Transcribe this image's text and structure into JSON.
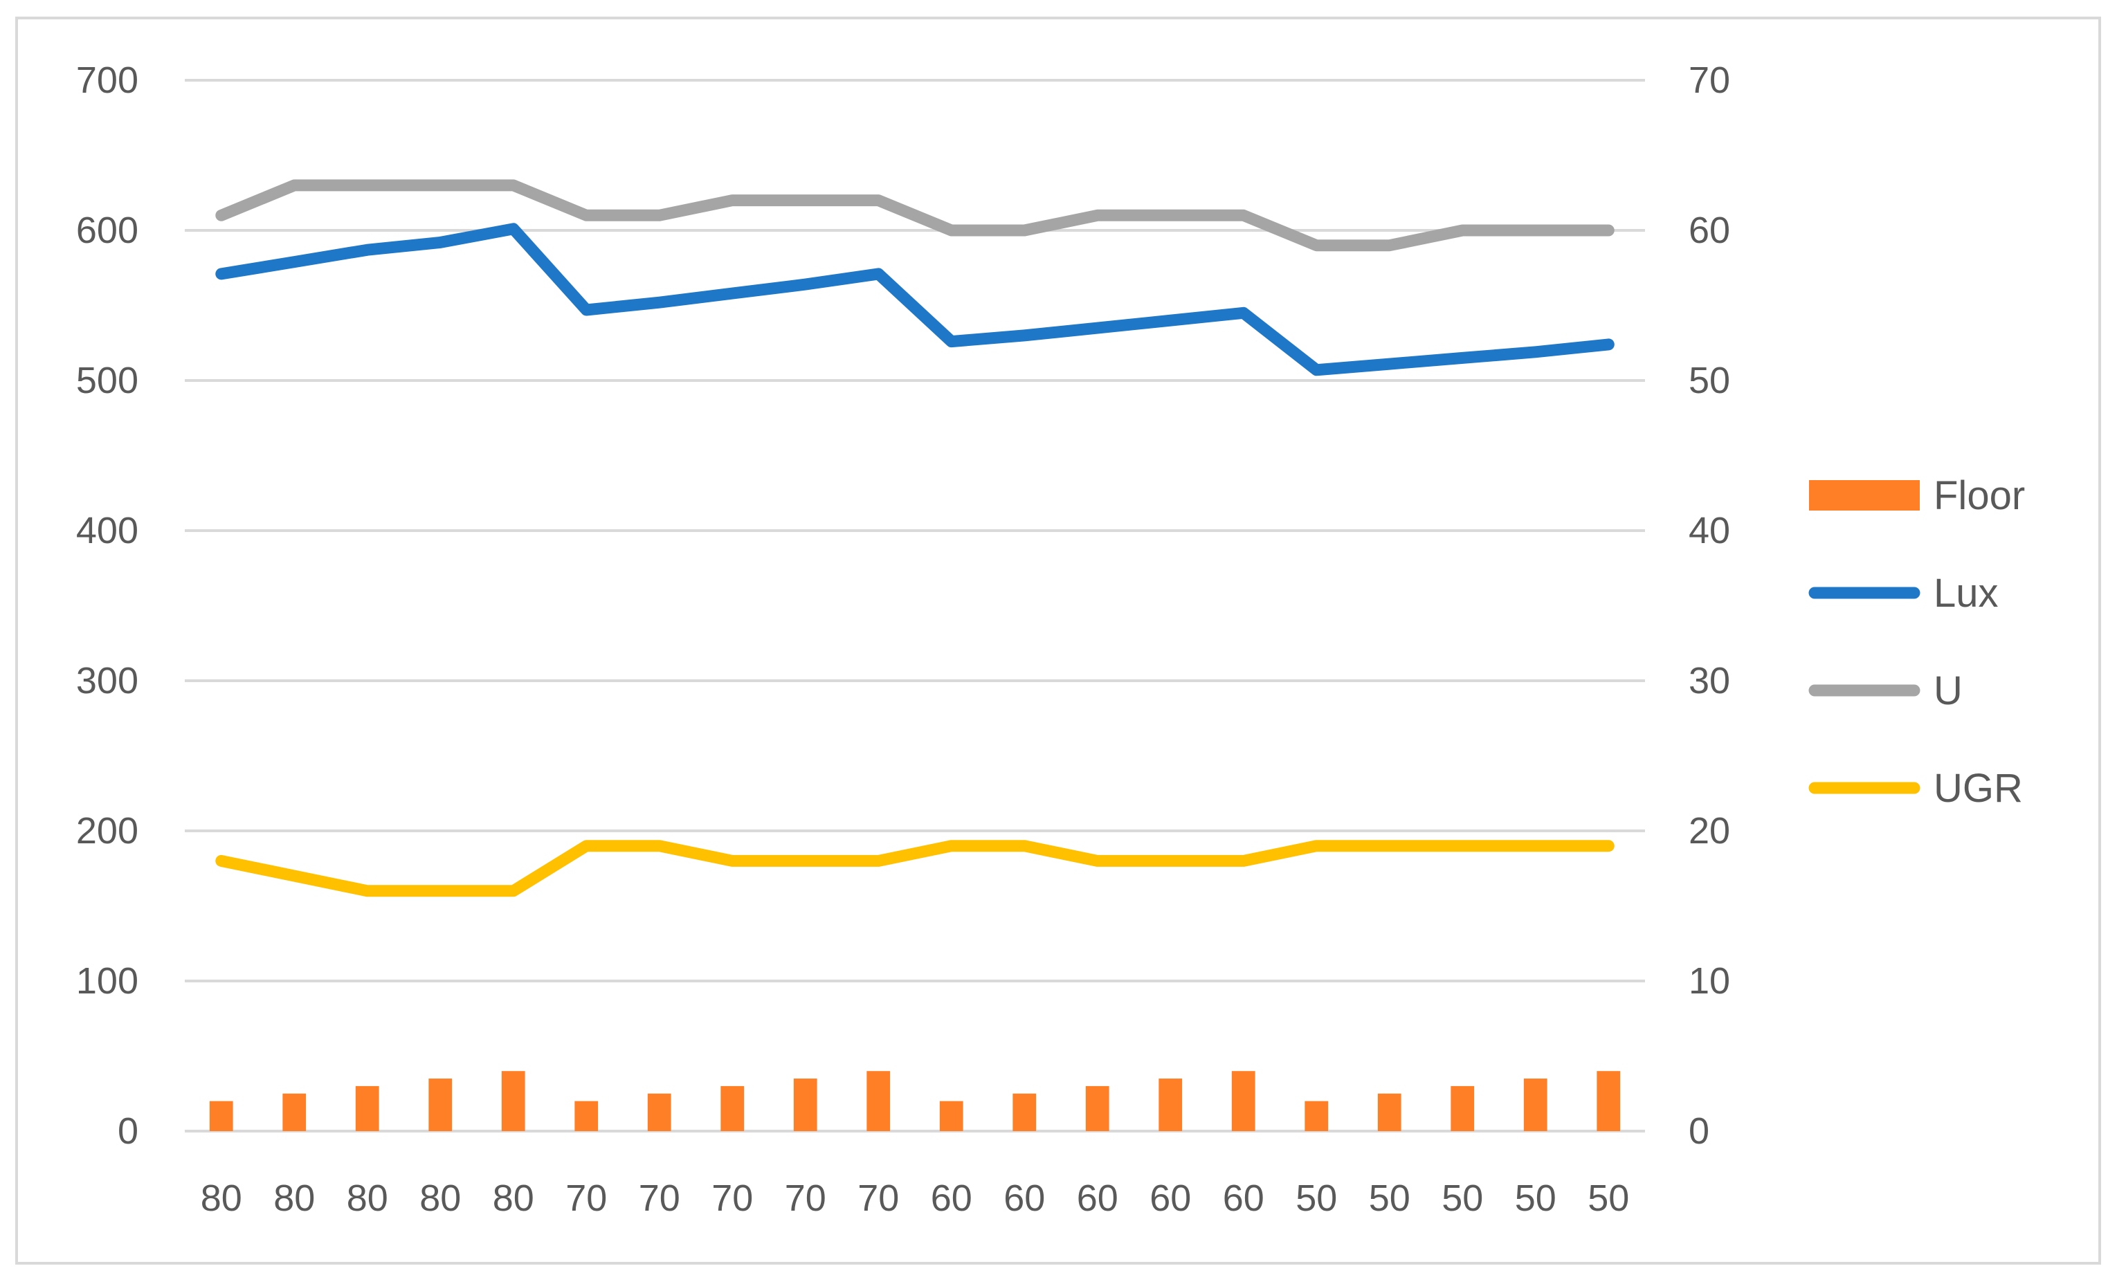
{
  "chart_data": {
    "type": "line",
    "title": "",
    "xlabel": "",
    "ylabel": "",
    "categories": [
      "80",
      "80",
      "80",
      "80",
      "80",
      "70",
      "70",
      "70",
      "70",
      "70",
      "60",
      "60",
      "60",
      "60",
      "60",
      "50",
      "50",
      "50",
      "50",
      "50"
    ],
    "y_left": {
      "range": [
        0,
        700
      ],
      "ticks": [
        "0",
        "100",
        "200",
        "300",
        "400",
        "500",
        "600",
        "700"
      ]
    },
    "y_right": {
      "range": [
        0,
        70
      ],
      "ticks": [
        "0",
        "10",
        "20",
        "30",
        "40",
        "50",
        "60",
        "70"
      ]
    },
    "grid": true,
    "legend_position": "right",
    "series": [
      {
        "name": "Floor",
        "kind": "bar",
        "axis": "right",
        "color": "#ff7f27",
        "values": [
          2,
          2.5,
          3,
          3.5,
          4,
          2,
          2.5,
          3,
          3.5,
          4,
          2,
          2.5,
          3,
          3.5,
          4,
          2,
          2.5,
          3,
          3.5,
          4
        ]
      },
      {
        "name": "Lux",
        "kind": "line",
        "axis": "left",
        "color": "#1f77c8",
        "values": [
          571,
          579,
          587,
          592,
          601,
          547,
          552,
          558,
          564,
          571,
          526,
          530,
          535,
          540,
          545,
          507,
          511,
          515,
          519,
          524
        ]
      },
      {
        "name": "U",
        "kind": "line",
        "axis": "right",
        "color": "#a5a5a5",
        "values": [
          61,
          63,
          63,
          63,
          63,
          61,
          61,
          62,
          62,
          62,
          60,
          60,
          61,
          61,
          61,
          59,
          59,
          60,
          60,
          60
        ]
      },
      {
        "name": "UGR",
        "kind": "line",
        "axis": "right",
        "color": "#ffc000",
        "values": [
          18,
          17,
          16,
          16,
          16,
          19,
          19,
          18,
          18,
          18,
          19,
          19,
          18,
          18,
          18,
          19,
          19,
          19,
          19,
          19
        ]
      }
    ]
  }
}
